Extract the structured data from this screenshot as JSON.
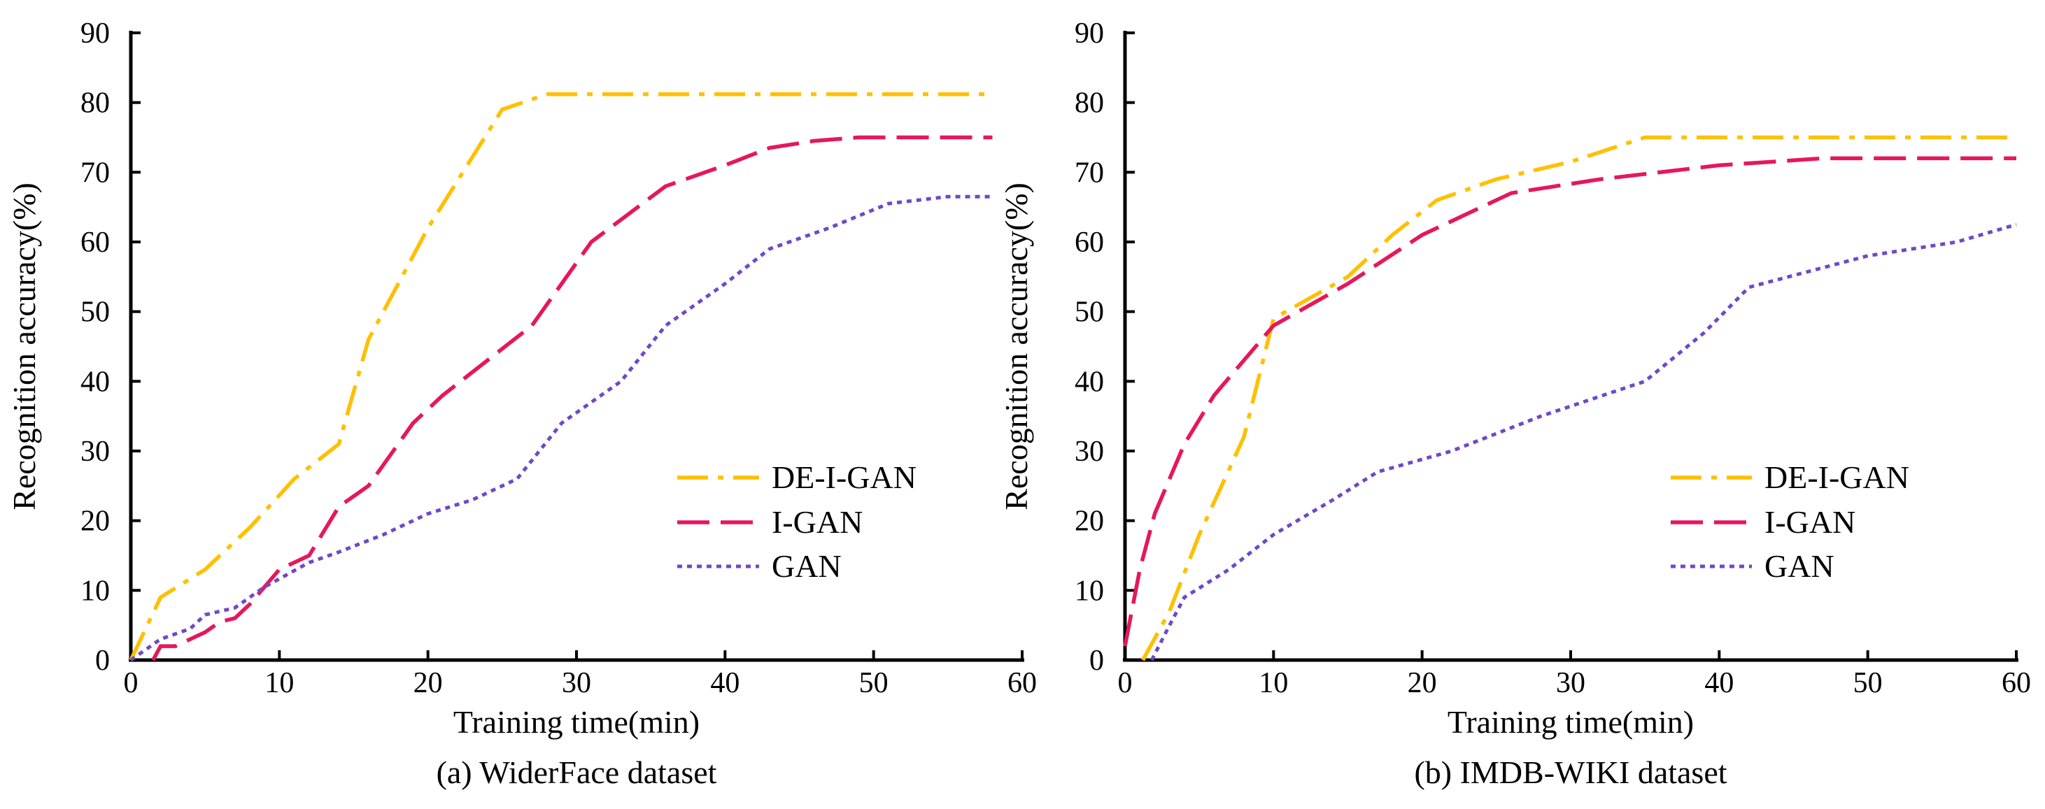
{
  "colors": {
    "de_i_gan": "#FFC000",
    "i_gan": "#E6175C",
    "gan": "#7048C8",
    "axis": "#000000"
  },
  "chart_data": [
    {
      "type": "line",
      "caption": "(a) WiderFace dataset",
      "xlabel": "Training time(min)",
      "ylabel": "Recognition accuracy(%)",
      "xlim": [
        0,
        60
      ],
      "ylim": [
        0,
        90
      ],
      "xticks": [
        0,
        10,
        20,
        30,
        40,
        50,
        60
      ],
      "yticks": [
        0,
        10,
        20,
        30,
        40,
        50,
        60,
        70,
        80,
        90
      ],
      "grid": false,
      "legend_position": "bottom-right",
      "series": [
        {
          "name": "DE-I-GAN",
          "style": "dashdot",
          "color_key": "de_i_gan",
          "x": [
            0,
            2,
            5,
            8,
            11,
            14,
            16,
            20,
            25,
            28,
            40,
            58
          ],
          "y": [
            0,
            9,
            13,
            19,
            26,
            31,
            46,
            62,
            79,
            81.2,
            81.2,
            81.2
          ]
        },
        {
          "name": "I-GAN",
          "style": "dash",
          "color_key": "i_gan",
          "x": [
            1.5,
            2,
            3,
            4,
            5,
            6,
            7,
            8,
            10,
            12,
            14,
            16,
            19,
            21,
            24,
            27,
            31,
            36,
            40,
            43,
            46,
            49,
            58
          ],
          "y": [
            0,
            2,
            2,
            3,
            4,
            5.5,
            6,
            8,
            13,
            15,
            22,
            25,
            34,
            38,
            43,
            48,
            60,
            68,
            71,
            73.5,
            74.5,
            75,
            75
          ]
        },
        {
          "name": "GAN",
          "style": "dot",
          "color_key": "gan",
          "x": [
            0,
            2,
            4,
            5,
            7,
            9,
            12,
            14,
            17,
            20,
            23,
            26,
            29,
            33,
            36,
            40,
            43,
            47,
            51,
            55,
            58
          ],
          "y": [
            0,
            3,
            4.5,
            6.5,
            7.5,
            10.5,
            14,
            15.5,
            18,
            21,
            23,
            26,
            34,
            40,
            48,
            54,
            59,
            62,
            65.5,
            66.5,
            66.5
          ]
        }
      ]
    },
    {
      "type": "line",
      "caption": "(b) IMDB-WIKI dataset",
      "xlabel": "Training time(min)",
      "ylabel": "Recognition accuracy(%)",
      "xlim": [
        0,
        60
      ],
      "ylim": [
        0,
        90
      ],
      "xticks": [
        0,
        10,
        20,
        30,
        40,
        50,
        60
      ],
      "yticks": [
        0,
        10,
        20,
        30,
        40,
        50,
        60,
        70,
        80,
        90
      ],
      "grid": false,
      "legend_position": "bottom-right",
      "series": [
        {
          "name": "DE-I-GAN",
          "style": "dashdot",
          "color_key": "de_i_gan",
          "x": [
            1.2,
            3,
            5,
            8,
            10,
            15,
            18,
            21,
            25,
            30,
            35,
            40,
            50,
            60
          ],
          "y": [
            0,
            7,
            18,
            32,
            49,
            55,
            61,
            66,
            69,
            71.5,
            75,
            75,
            75,
            75
          ]
        },
        {
          "name": "I-GAN",
          "style": "dash",
          "color_key": "i_gan",
          "x": [
            0,
            1,
            2,
            4,
            6,
            8,
            10,
            15,
            20,
            26,
            32,
            40,
            47,
            60
          ],
          "y": [
            2,
            13,
            21,
            31,
            38,
            43,
            48,
            54,
            61,
            67,
            69,
            71,
            72,
            72
          ]
        },
        {
          "name": "GAN",
          "style": "dot",
          "color_key": "gan",
          "x": [
            1.8,
            3,
            4,
            7,
            10,
            14,
            17,
            22,
            28,
            35,
            39,
            42,
            50,
            56,
            60
          ],
          "y": [
            0,
            5,
            9,
            13,
            18,
            23,
            27,
            30,
            35,
            40,
            47,
            53.5,
            58,
            60,
            62.5
          ]
        }
      ]
    }
  ]
}
